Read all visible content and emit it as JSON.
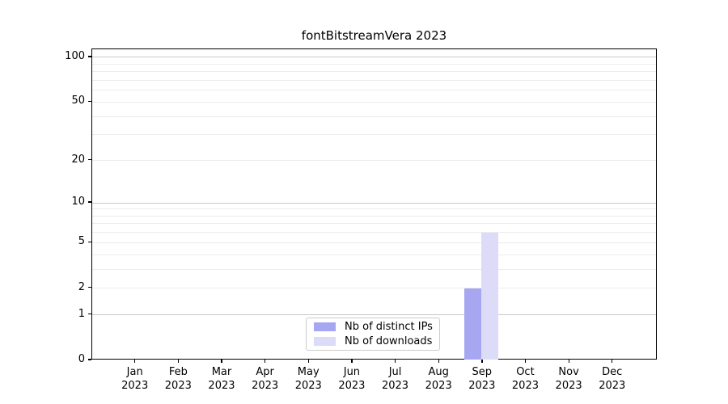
{
  "figure": {
    "background": "#ffffff"
  },
  "chart_data": {
    "type": "bar",
    "title": "fontBitstreamVera 2023",
    "x_months": [
      "Jan",
      "Feb",
      "Mar",
      "Apr",
      "May",
      "Jun",
      "Jul",
      "Aug",
      "Sep",
      "Oct",
      "Nov",
      "Dec"
    ],
    "x_year": "2023",
    "categories": [
      "Jan 2023",
      "Feb 2023",
      "Mar 2023",
      "Apr 2023",
      "May 2023",
      "Jun 2023",
      "Jul 2023",
      "Aug 2023",
      "Sep 2023",
      "Oct 2023",
      "Nov 2023",
      "Dec 2023"
    ],
    "series": [
      {
        "name": "Nb of distinct IPs",
        "color": "#a6a6f1",
        "values": [
          0,
          0,
          0,
          0,
          0,
          0,
          0,
          0,
          2,
          0,
          0,
          0
        ]
      },
      {
        "name": "Nb of downloads",
        "color": "#dcdcf8",
        "values": [
          0,
          0,
          0,
          0,
          0,
          0,
          0,
          0,
          6,
          0,
          0,
          0
        ]
      }
    ],
    "xlabel": "",
    "ylabel": "",
    "y_ticks": [
      0,
      1,
      2,
      5,
      10,
      20,
      50,
      100
    ],
    "y_scale": "log10(1+value)",
    "ylim": [
      0,
      113
    ],
    "grid": {
      "on": true,
      "major_color": "#c9c9c9",
      "minor_color": "#ececec"
    },
    "legend": {
      "position": "lower center",
      "border_color": "#cccccc",
      "background": "#ffffff"
    }
  }
}
